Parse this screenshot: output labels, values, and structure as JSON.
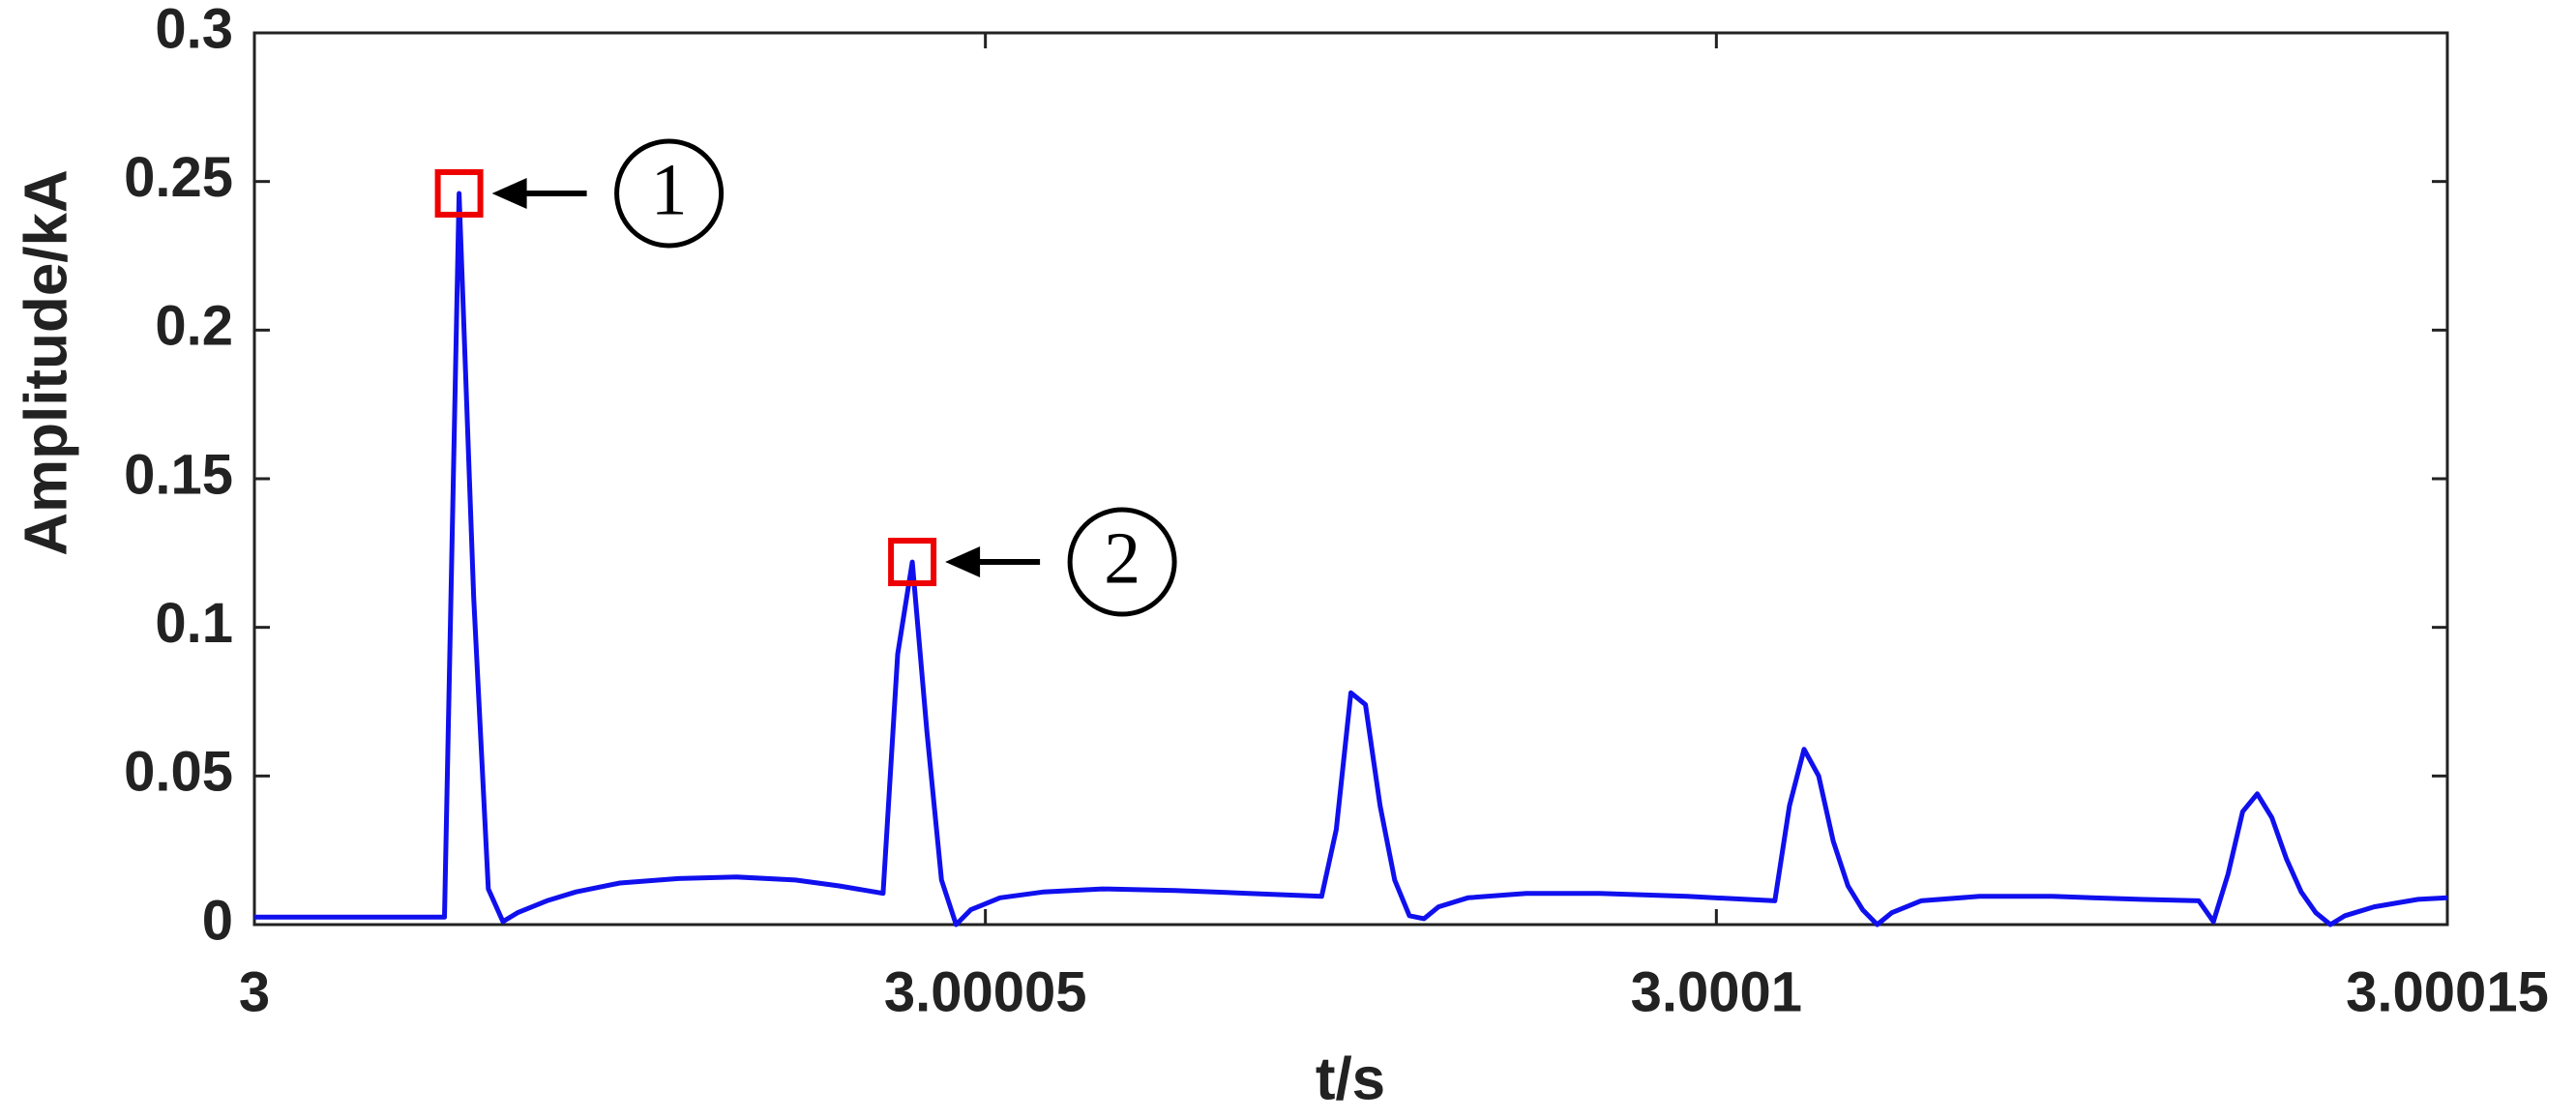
{
  "chart_data": {
    "type": "line",
    "xlabel": "t/s",
    "ylabel": "Amplitude/kA",
    "x": [
      3,
      3.000013,
      3.000014,
      3.000015,
      3.000016,
      3.000017,
      3.000018,
      3.00002,
      3.000022,
      3.000025,
      3.000029,
      3.000033,
      3.000037,
      3.00004,
      3.000043,
      3.000044,
      3.000045,
      3.000046,
      3.000047,
      3.000048,
      3.000049,
      3.000051,
      3.000054,
      3.000058,
      3.000063,
      3.000068,
      3.000073,
      3.000074,
      3.000075,
      3.000076,
      3.000077,
      3.000078,
      3.000079,
      3.00008,
      3.000081,
      3.000083,
      3.000087,
      3.000092,
      3.000098,
      3.000104,
      3.000105,
      3.000106,
      3.000107,
      3.000108,
      3.000109,
      3.00011,
      3.000111,
      3.000112,
      3.000114,
      3.000118,
      3.000123,
      3.000129,
      3.000133,
      3.000134,
      3.000135,
      3.000136,
      3.000137,
      3.000138,
      3.000139,
      3.00014,
      3.000141,
      3.000142,
      3.000143,
      3.000145,
      3.000148,
      3.00015
    ],
    "values": [
      0.0025,
      0.0025,
      0.246,
      0.11,
      0.012,
      0.001,
      0.004,
      0.008,
      0.011,
      0.014,
      0.0155,
      0.016,
      0.015,
      0.013,
      0.0105,
      0.091,
      0.122,
      0.065,
      0.015,
      0,
      0.005,
      0.009,
      0.011,
      0.012,
      0.0115,
      0.0105,
      0.0095,
      0.032,
      0.078,
      0.074,
      0.04,
      0.015,
      0.003,
      0.002,
      0.006,
      0.009,
      0.0105,
      0.0105,
      0.0095,
      0.008,
      0.04,
      0.059,
      0.05,
      0.028,
      0.013,
      0.005,
      0,
      0.004,
      0.008,
      0.0095,
      0.0095,
      0.0085,
      0.008,
      0.001,
      0.017,
      0.038,
      0.044,
      0.036,
      0.022,
      0.011,
      0.004,
      0,
      0.003,
      0.006,
      0.0085,
      0.009
    ],
    "color": "#1010ee",
    "xlim": [
      3,
      3.00015
    ],
    "xticks": [
      3,
      3.00005,
      3.0001,
      3.00015
    ],
    "ylim": [
      0,
      0.3
    ],
    "yticks": [
      0,
      0.05,
      0.1,
      0.15,
      0.2,
      0.25,
      0.3
    ],
    "annotations": [
      {
        "text": "1",
        "x": 3.000014,
        "y": 0.246
      },
      {
        "text": "2",
        "x": 3.000045,
        "y": 0.122
      }
    ]
  }
}
